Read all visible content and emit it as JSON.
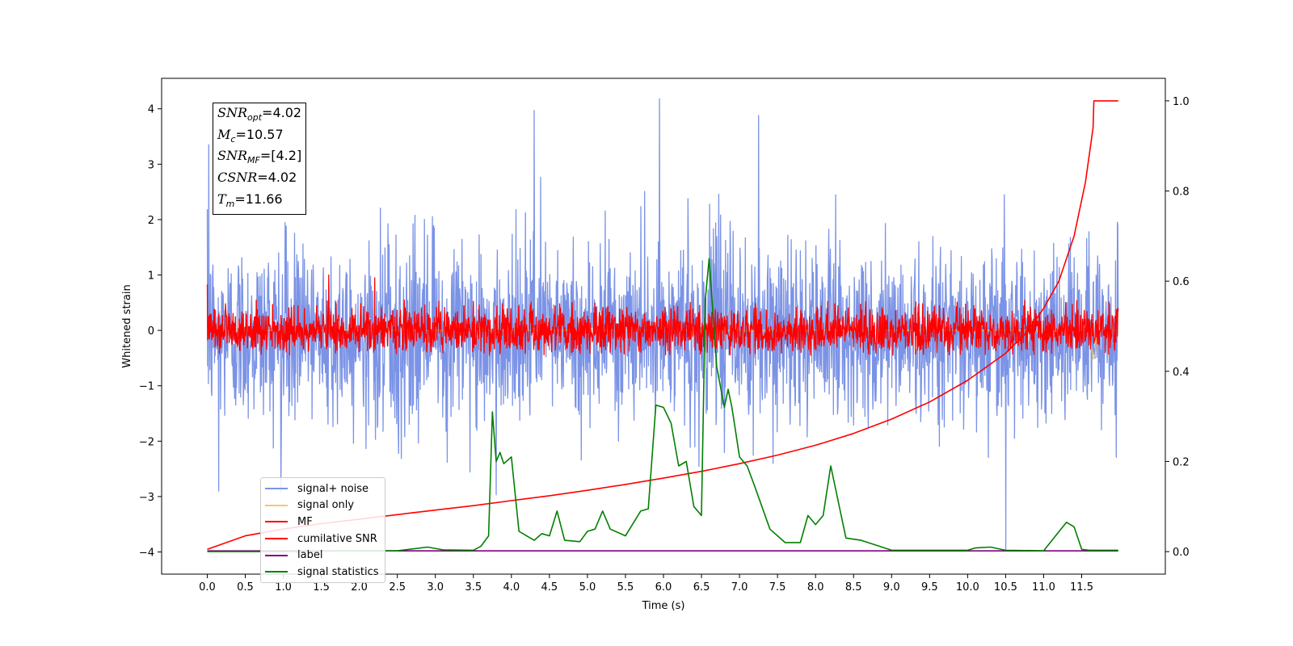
{
  "chart_data": {
    "type": "line",
    "xlabel": "Time (s)",
    "ylabel": "Whitened strain",
    "xlim": [
      -0.6,
      12.6
    ],
    "ylim": [
      -4.4,
      4.55
    ],
    "y2lim": [
      -0.05,
      1.05
    ],
    "x_ticks": [
      "0.0",
      "0.5",
      "1.0",
      "1.5",
      "2.0",
      "2.5",
      "3.0",
      "3.5",
      "4.0",
      "4.5",
      "5.0",
      "5.5",
      "6.0",
      "6.5",
      "7.0",
      "7.5",
      "8.0",
      "8.5",
      "9.0",
      "9.5",
      "10.0",
      "10.5",
      "11.0",
      "11.5"
    ],
    "y_ticks": [
      "4",
      "3",
      "2",
      "1",
      "0",
      "−1",
      "−2",
      "−3",
      "−4"
    ],
    "y2_ticks": [
      "1.0",
      "0.8",
      "0.6",
      "0.4",
      "0.2",
      "0.0"
    ],
    "annotation": [
      {
        "symbol": "SNR",
        "sub": "opt",
        "value": "=4.02"
      },
      {
        "symbol": "M",
        "sub": "c",
        "value": "=10.57"
      },
      {
        "symbol": "SNR",
        "sub": "MF",
        "value": "=[4.2]"
      },
      {
        "symbol": "CSNR",
        "sub": "",
        "value": "=4.02"
      },
      {
        "symbol": "T",
        "sub": "m",
        "value": "=11.66"
      }
    ],
    "legend_position": "lower-left",
    "series": [
      {
        "name": "signal+ noise",
        "color": "#7b93e6",
        "axis": "left",
        "style": "noise",
        "x_range": [
          0,
          11.98
        ],
        "center": -0.05,
        "amplitude": 1.3,
        "extrema": [
          {
            "x": 0.02,
            "y": 3.35
          },
          {
            "x": 4.3,
            "y": 3.97
          },
          {
            "x": 5.95,
            "y": 4.18
          },
          {
            "x": 7.25,
            "y": 3.88
          },
          {
            "x": 10.5,
            "y": -3.95
          },
          {
            "x": 0.15,
            "y": -2.9
          }
        ]
      },
      {
        "name": "signal only",
        "color": "#f5c76a",
        "axis": "left",
        "style": "burst",
        "x_range": [
          0,
          11.98
        ],
        "burst": {
          "x": 11.66,
          "y_max": 0.75,
          "y_min": -0.55
        }
      },
      {
        "name": "MF",
        "color": "#ff0000",
        "axis": "left",
        "style": "noise",
        "x_range": [
          0,
          11.98
        ],
        "center": 0.0,
        "amplitude": 0.35,
        "extrema": [
          {
            "x": 0.0,
            "y": 0.83
          },
          {
            "x": 1.6,
            "y": 1.0
          },
          {
            "x": 2.2,
            "y": 0.95
          }
        ]
      },
      {
        "name": "cumilative SNR",
        "color": "#ff0000",
        "axis": "right",
        "x": [
          0,
          0.5,
          1,
          1.5,
          2,
          2.5,
          3,
          3.5,
          4,
          4.5,
          5,
          5.5,
          6,
          6.5,
          7,
          7.5,
          8,
          8.5,
          9,
          9.5,
          10,
          10.5,
          10.8,
          11.0,
          11.2,
          11.4,
          11.55,
          11.65,
          11.66,
          11.98
        ],
        "y": [
          0.005,
          0.035,
          0.05,
          0.062,
          0.072,
          0.082,
          0.092,
          0.102,
          0.113,
          0.124,
          0.136,
          0.149,
          0.163,
          0.178,
          0.195,
          0.214,
          0.236,
          0.262,
          0.294,
          0.332,
          0.38,
          0.44,
          0.49,
          0.54,
          0.6,
          0.7,
          0.82,
          0.94,
          1.0,
          1.0
        ]
      },
      {
        "name": "label",
        "color": "#800080",
        "axis": "left",
        "style": "flat",
        "x": [
          0,
          11.98
        ],
        "y": [
          -3.98,
          -3.98
        ]
      },
      {
        "name": "signal statistics",
        "color": "#008000",
        "axis": "right",
        "x": [
          0,
          0.5,
          1.0,
          1.5,
          2.0,
          2.5,
          2.9,
          3.1,
          3.5,
          3.6,
          3.7,
          3.75,
          3.8,
          3.85,
          3.9,
          4.0,
          4.1,
          4.2,
          4.3,
          4.4,
          4.5,
          4.6,
          4.7,
          4.9,
          5.0,
          5.1,
          5.2,
          5.3,
          5.5,
          5.7,
          5.8,
          5.9,
          6.0,
          6.1,
          6.2,
          6.3,
          6.4,
          6.5,
          6.55,
          6.6,
          6.7,
          6.8,
          6.85,
          6.9,
          7.0,
          7.1,
          7.2,
          7.4,
          7.6,
          7.8,
          7.9,
          8.0,
          8.1,
          8.2,
          8.4,
          8.6,
          9.0,
          10.0,
          10.1,
          10.3,
          10.5,
          11.0,
          11.3,
          11.4,
          11.5,
          11.6,
          11.8,
          11.98
        ],
        "y": [
          0.0,
          0.0,
          0.0,
          0.001,
          0.002,
          0.002,
          0.01,
          0.004,
          0.003,
          0.012,
          0.035,
          0.31,
          0.2,
          0.22,
          0.195,
          0.21,
          0.045,
          0.035,
          0.025,
          0.04,
          0.035,
          0.09,
          0.025,
          0.022,
          0.045,
          0.05,
          0.09,
          0.05,
          0.035,
          0.09,
          0.095,
          0.325,
          0.32,
          0.285,
          0.19,
          0.2,
          0.1,
          0.08,
          0.56,
          0.65,
          0.41,
          0.32,
          0.36,
          0.32,
          0.21,
          0.19,
          0.145,
          0.05,
          0.02,
          0.02,
          0.08,
          0.06,
          0.08,
          0.19,
          0.03,
          0.025,
          0.003,
          0.003,
          0.008,
          0.01,
          0.003,
          0.002,
          0.065,
          0.055,
          0.005,
          0.003,
          0.003,
          0.003
        ]
      }
    ]
  }
}
